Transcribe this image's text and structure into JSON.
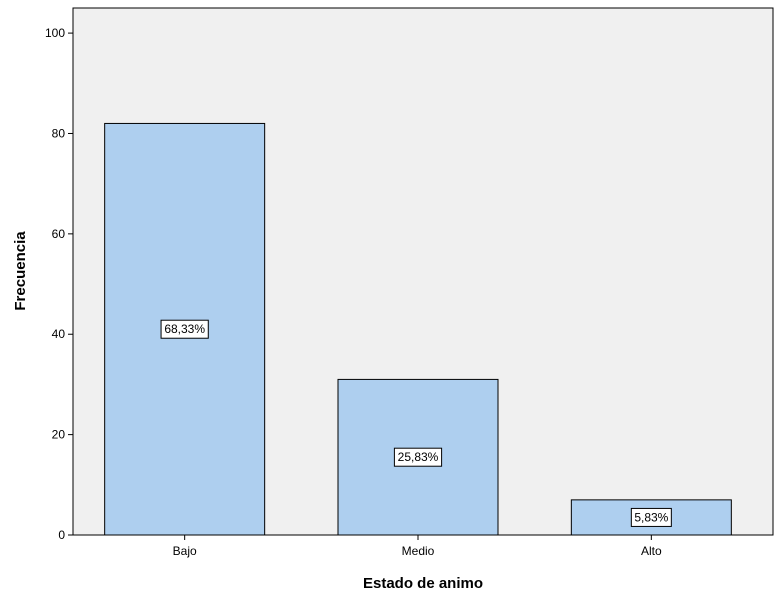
{
  "chart_data": {
    "type": "bar",
    "categories": [
      "Bajo",
      "Medio",
      "Alto"
    ],
    "values": [
      82,
      31,
      7
    ],
    "data_labels": [
      "68,33%",
      "25,83%",
      "5,83%"
    ],
    "xlabel": "Estado de animo",
    "ylabel": "Frecuencia",
    "ylim": [
      0,
      105
    ],
    "yticks": [
      0,
      20,
      40,
      60,
      80,
      100
    ],
    "grid": false,
    "legend": "none",
    "colors": {
      "plot_background": "#f0f0f0",
      "bar_fill": "#aecfef",
      "bar_stroke": "#000000",
      "label_box": "#ffffff"
    }
  }
}
